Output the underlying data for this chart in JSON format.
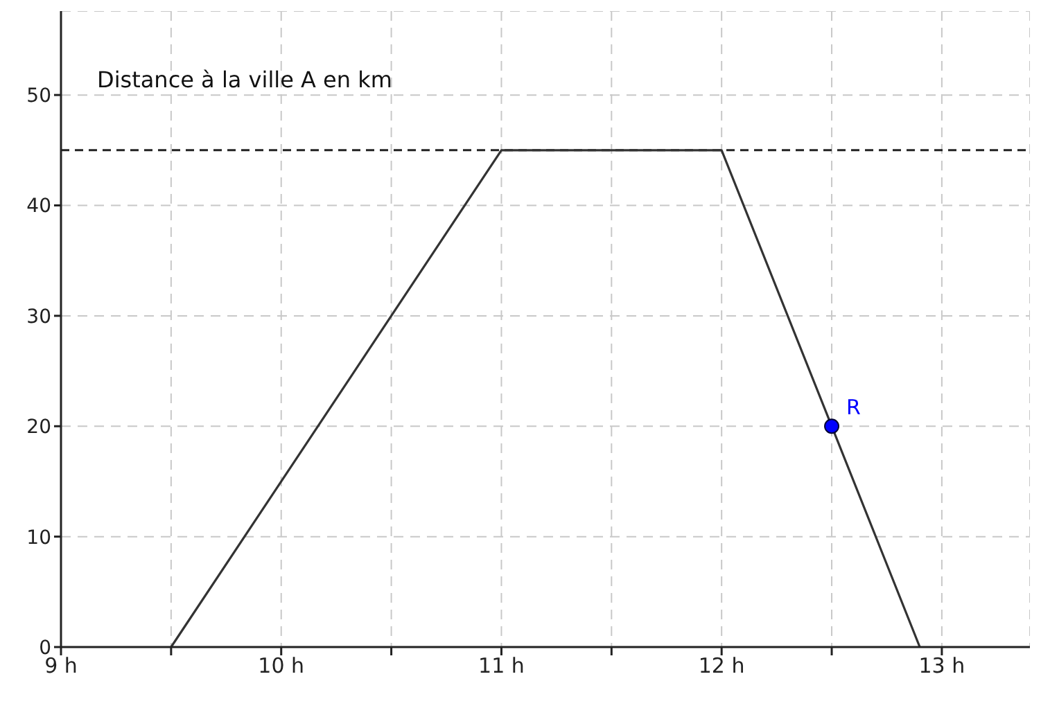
{
  "chart_data": {
    "type": "line",
    "ylabel": "Distance à la ville A en km",
    "x": [
      9.5,
      11,
      12,
      12.9
    ],
    "series": [
      {
        "color": "#333333",
        "values": [
          0,
          45,
          45,
          0
        ]
      },
      {
        "type": "scatter",
        "name": "R",
        "color": "#0000ff",
        "marker": "circle",
        "x": [
          12.5
        ],
        "values": [
          20
        ]
      }
    ],
    "xlim": [
      9,
      13.4
    ],
    "xticks": [
      {
        "value": 9,
        "label": "9 h"
      },
      {
        "value": 9.5,
        "label": null
      },
      {
        "value": 10,
        "label": "10 h"
      },
      {
        "value": 10.5,
        "label": null
      },
      {
        "value": 11,
        "label": "11 h"
      },
      {
        "value": 11.5,
        "label": null
      },
      {
        "value": 12,
        "label": "12 h"
      },
      {
        "value": 12.5,
        "label": null
      },
      {
        "value": 13,
        "label": "13 h"
      }
    ],
    "ylim": [
      0,
      57.6
    ],
    "yticks": [
      0,
      10,
      20,
      30,
      40,
      50
    ],
    "ref_lines": [
      {
        "axis": "y",
        "value": 45,
        "label": null,
        "color": "#222222",
        "line_style": "dashed"
      }
    ],
    "grid": true
  }
}
